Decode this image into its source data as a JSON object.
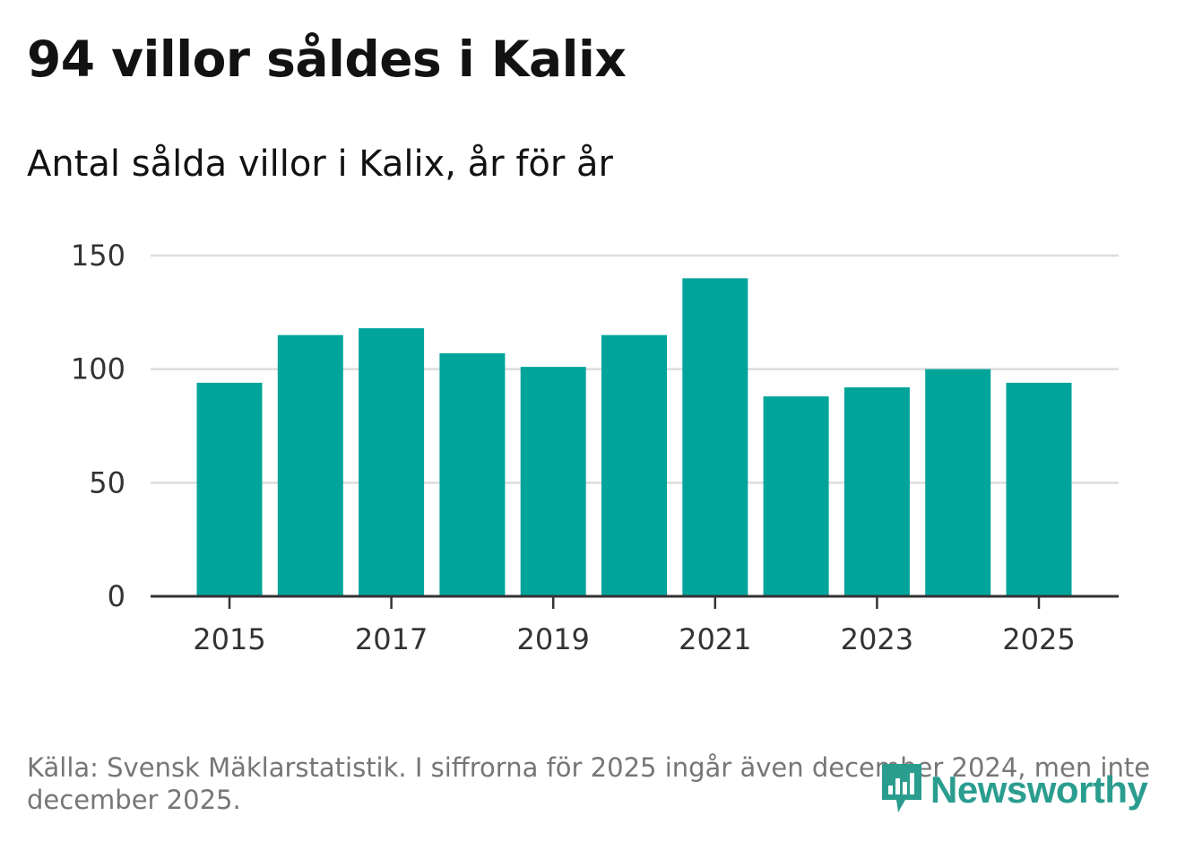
{
  "title": "94 villor såldes i Kalix",
  "subtitle": "Antal sålda villor i Kalix, år för år",
  "source": "Källa: Svensk Mäklarstatistik. I siffrorna för 2025 ingår även december 2024, men inte december 2025.",
  "logo": {
    "text": "Newsworthy",
    "icon": "bar-chart-speech-bubble-icon"
  },
  "colors": {
    "bar": "#00a49a",
    "grid": "#dcdcdc",
    "axis": "#333333",
    "text": "#121212",
    "source": "#767676",
    "logo": "#2a9d8f"
  },
  "chart_data": {
    "type": "bar",
    "categories": [
      "2015",
      "2016",
      "2017",
      "2018",
      "2019",
      "2020",
      "2021",
      "2022",
      "2023",
      "2024",
      "2025"
    ],
    "values": [
      94,
      115,
      118,
      107,
      101,
      115,
      140,
      88,
      92,
      100,
      94
    ],
    "title": "94 villor såldes i Kalix",
    "subtitle": "Antal sålda villor i Kalix, år för år",
    "xlabel": "",
    "ylabel": "",
    "ylim": [
      0,
      150
    ],
    "yticks": [
      0,
      50,
      100,
      150
    ],
    "xtick_labels": [
      "2015",
      "2017",
      "2019",
      "2021",
      "2023",
      "2025"
    ],
    "grid": true,
    "legend": "none"
  }
}
